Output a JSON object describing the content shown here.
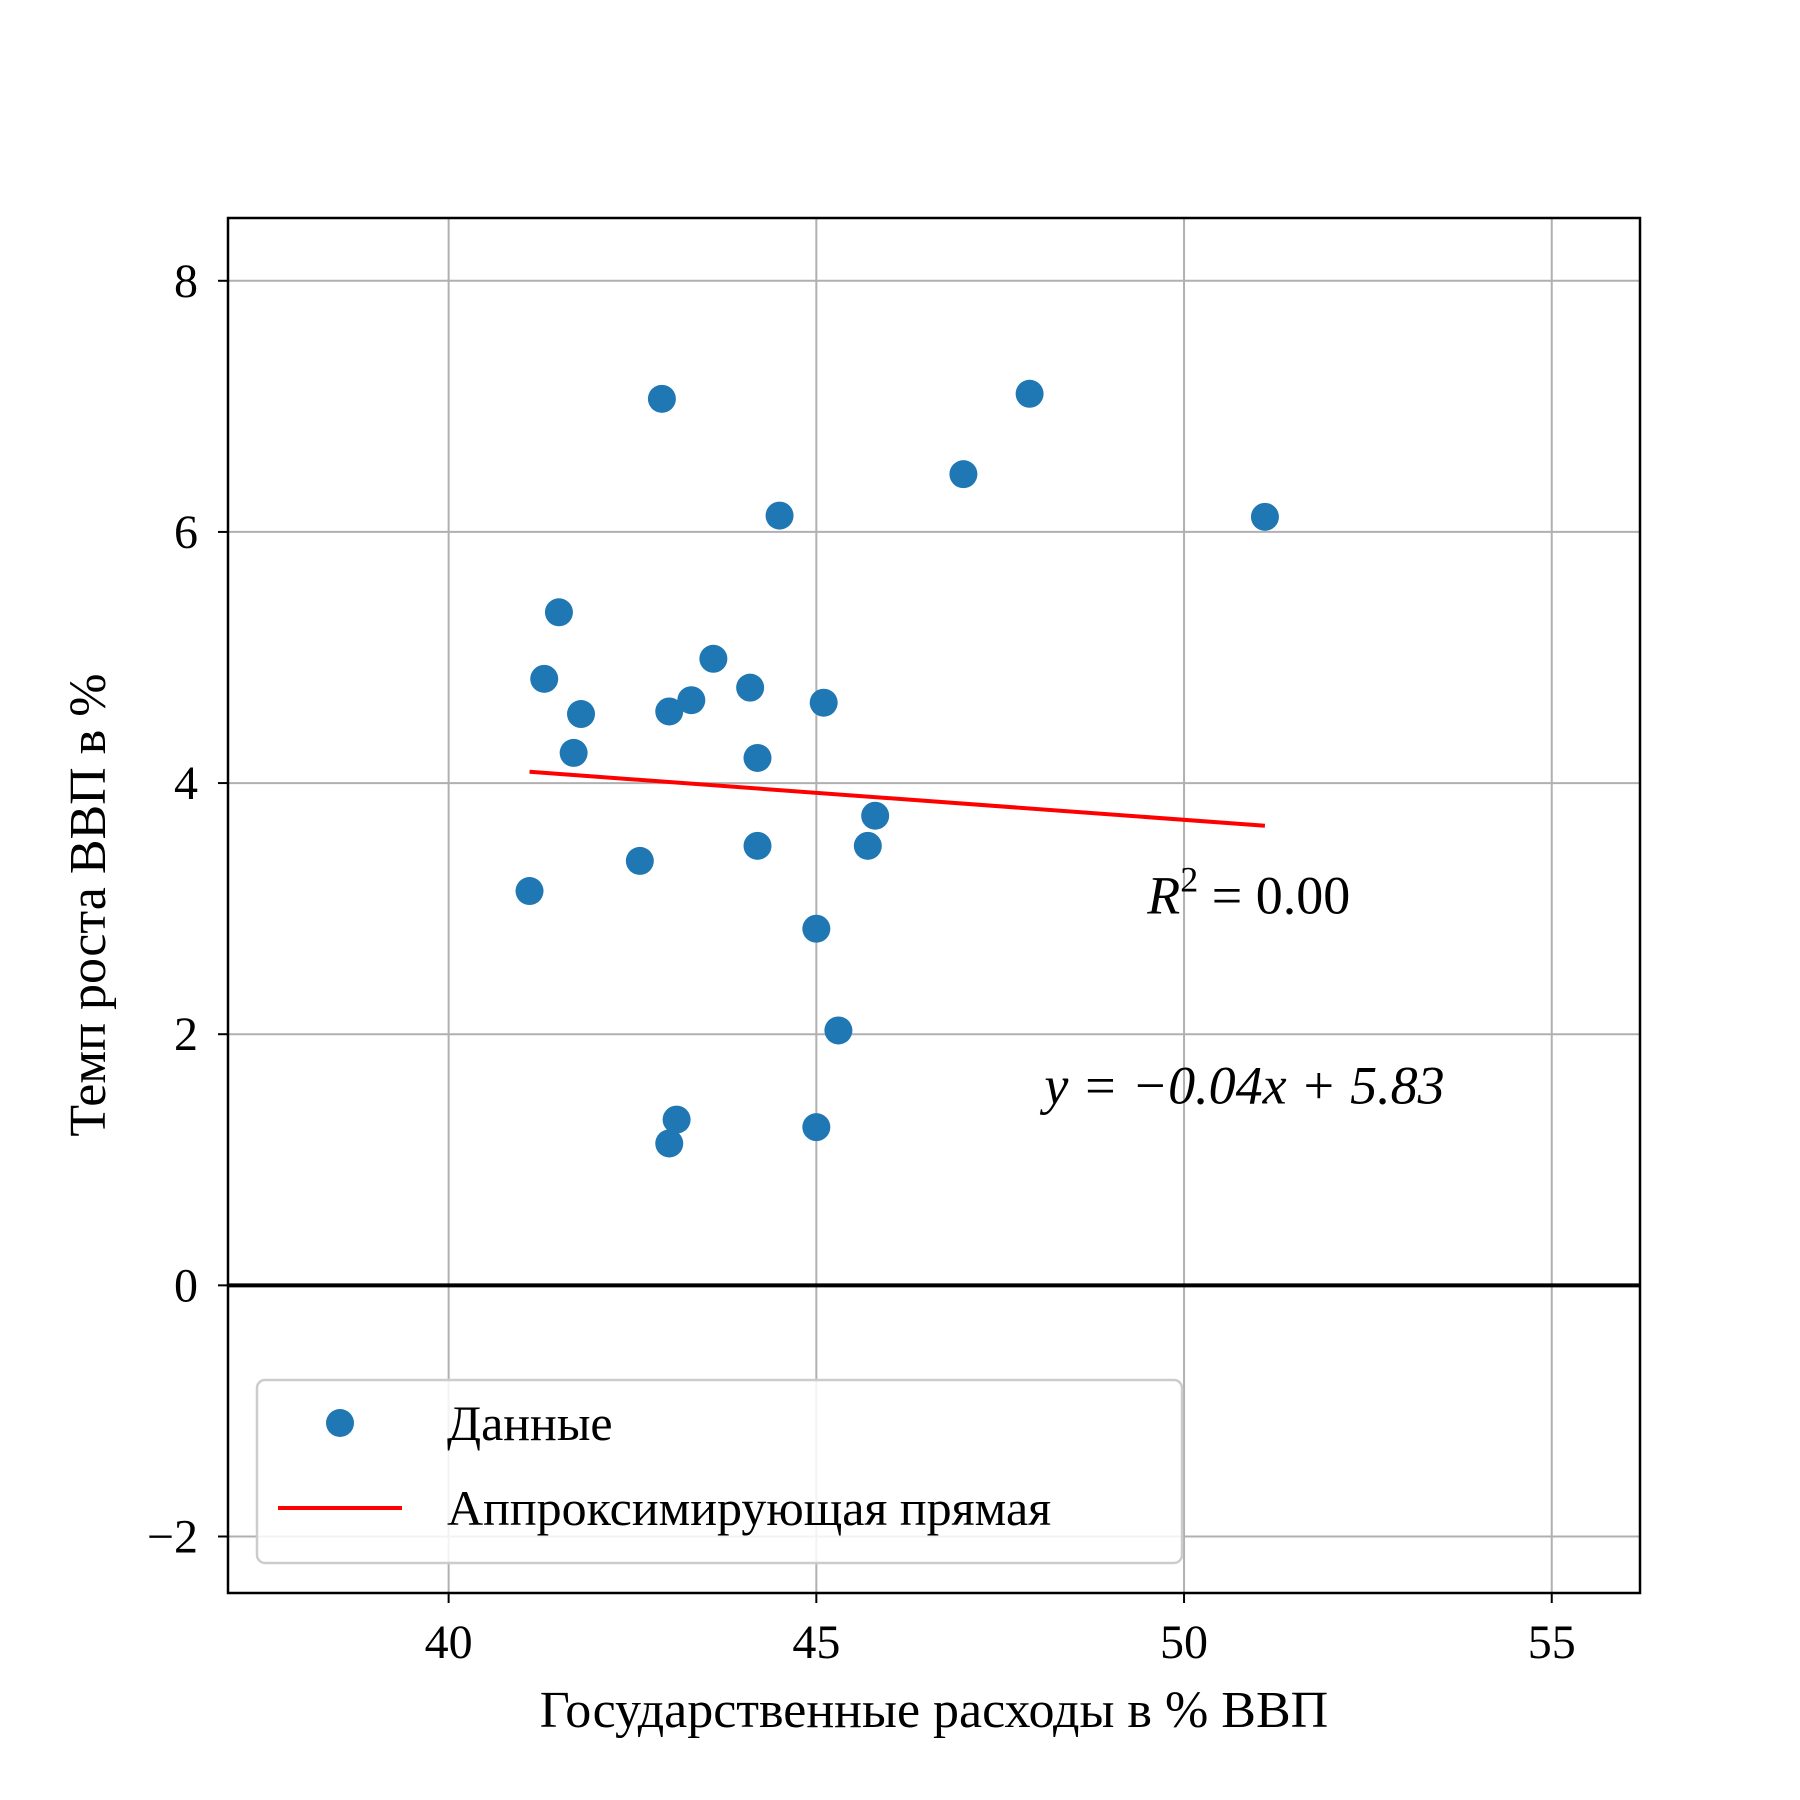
{
  "chart_data": {
    "type": "scatter",
    "xlabel": "Государственные расходы в % ВВП",
    "ylabel": "Темп роста ВВП в %",
    "xlim": [
      37,
      56.2
    ],
    "ylim": [
      -2.45,
      8.5
    ],
    "xticks": [
      40,
      45,
      50,
      55
    ],
    "yticks": [
      -2,
      0,
      2,
      4,
      6,
      8
    ],
    "xtick_labels": [
      "40",
      "45",
      "50",
      "55"
    ],
    "ytick_labels": [
      "−2",
      "0",
      "2",
      "4",
      "6",
      "8"
    ],
    "grid": true,
    "zero_line": true,
    "legend_position": "lower-left",
    "series": [
      {
        "name": "Данные",
        "type": "scatter",
        "color": "#1f77b4",
        "points": [
          {
            "x": 41.1,
            "y": 3.14
          },
          {
            "x": 41.3,
            "y": 4.83
          },
          {
            "x": 41.5,
            "y": 5.36
          },
          {
            "x": 41.7,
            "y": 4.24
          },
          {
            "x": 41.8,
            "y": 4.55
          },
          {
            "x": 42.6,
            "y": 3.38
          },
          {
            "x": 42.9,
            "y": 7.06
          },
          {
            "x": 43.0,
            "y": 4.57
          },
          {
            "x": 43.0,
            "y": 1.13
          },
          {
            "x": 43.1,
            "y": 1.32
          },
          {
            "x": 43.3,
            "y": 4.66
          },
          {
            "x": 43.6,
            "y": 4.99
          },
          {
            "x": 44.1,
            "y": 4.76
          },
          {
            "x": 44.2,
            "y": 4.2
          },
          {
            "x": 44.2,
            "y": 3.5
          },
          {
            "x": 44.5,
            "y": 6.13
          },
          {
            "x": 45.0,
            "y": 2.84
          },
          {
            "x": 45.0,
            "y": 1.26
          },
          {
            "x": 45.1,
            "y": 4.64
          },
          {
            "x": 45.3,
            "y": 2.03
          },
          {
            "x": 45.7,
            "y": 3.5
          },
          {
            "x": 45.8,
            "y": 3.74
          },
          {
            "x": 47.0,
            "y": 6.46
          },
          {
            "x": 47.9,
            "y": 7.1
          },
          {
            "x": 51.1,
            "y": 6.12
          }
        ]
      },
      {
        "name": "Аппроксимирующая прямая",
        "type": "line",
        "color": "#ff0000",
        "points": [
          {
            "x": 41.1,
            "y": 4.09
          },
          {
            "x": 51.1,
            "y": 3.66
          }
        ]
      }
    ],
    "annotations": {
      "r2_symbol": "R",
      "r2_exponent": "2",
      "r2_rest": " = 0.00",
      "equation": "y = −0.04x + 5.83",
      "r2_anchor": {
        "x": 49.5,
        "y": 2.96
      },
      "eq_anchor": {
        "x": 48.1,
        "y": 1.45
      }
    }
  }
}
